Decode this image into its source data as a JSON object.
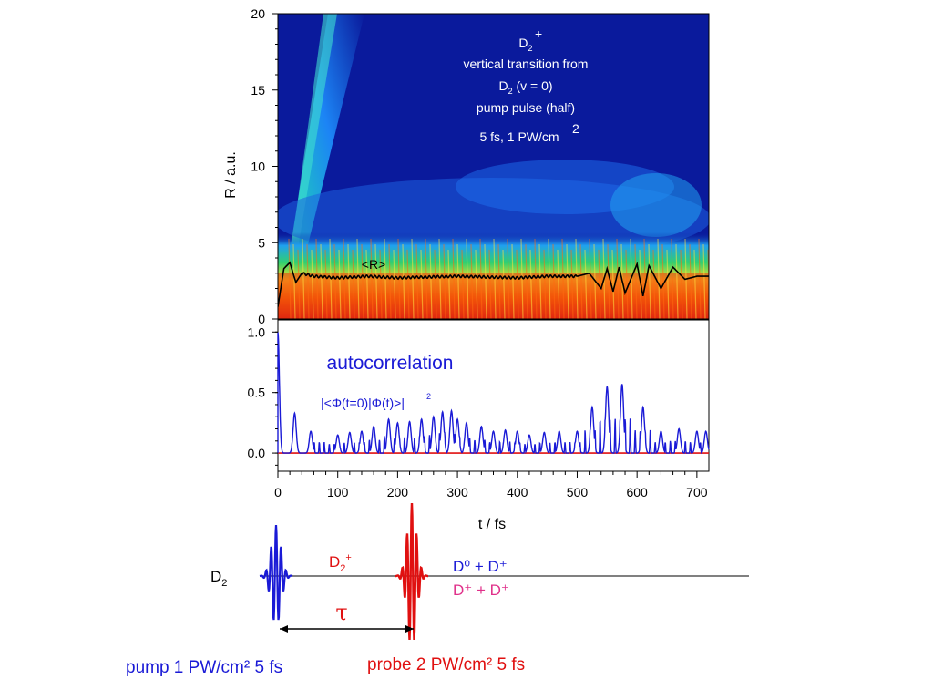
{
  "top_panel": {
    "ylabel": "R / a.u.",
    "yticks": [
      "0",
      "5",
      "10",
      "15",
      "20"
    ],
    "mean_label": "<R>",
    "annotation": {
      "species_base": "D",
      "species_sub": "2",
      "species_sup": "+",
      "line2": "vertical transition from",
      "line3_base": "D",
      "line3_sub": "2",
      "line3_rest": " (v = 0)",
      "line4": "pump pulse (half)",
      "line5": "5 fs, 1 PW/cm",
      "line5_sup": "2"
    }
  },
  "bottom_panel": {
    "title": "autocorrelation",
    "formula": "|<Φ(t=0)|Φ(t)>|",
    "formula_sup": "2",
    "yticks": [
      "0.0",
      "0.5",
      "1.0"
    ],
    "xticks": [
      "0",
      "100",
      "200",
      "300",
      "400",
      "500",
      "600",
      "700"
    ],
    "xlabel": "t / fs"
  },
  "scheme": {
    "d2_base": "D",
    "d2_sub": "2",
    "d2plus_base": "D",
    "d2plus_sub": "2",
    "d2plus_sup": "+",
    "channel1": "D⁰ + D⁺",
    "channel2": "D⁺ + D⁺",
    "tau": "τ",
    "pump_label": "pump 1 PW/cm² 5 fs",
    "probe_label": "probe 2 PW/cm² 5 fs"
  },
  "colors": {
    "pump": "#1a1ad6",
    "probe": "#e01010",
    "channel2": "#e0308a",
    "heatmap_bg": "#0a1a9c"
  },
  "chart_data": [
    {
      "type": "heatmap",
      "title": "",
      "xlabel": "",
      "ylabel": "R / a.u.",
      "xlim": [
        0,
        720
      ],
      "ylim": [
        0,
        20
      ],
      "series": [
        {
          "name": "<R>",
          "x": [
            0,
            10,
            20,
            30,
            40,
            60,
            100,
            150,
            200,
            300,
            400,
            450,
            500,
            520,
            540,
            550,
            560,
            570,
            580,
            600,
            610,
            620,
            640,
            660,
            680,
            700,
            720
          ],
          "y": [
            0.8,
            3.3,
            3.7,
            2.4,
            3.0,
            2.8,
            2.7,
            2.8,
            2.7,
            2.8,
            2.7,
            2.8,
            2.8,
            3.0,
            2.0,
            3.3,
            1.8,
            3.4,
            1.7,
            3.6,
            1.5,
            3.5,
            2.0,
            3.4,
            2.6,
            2.8,
            2.8
          ]
        }
      ]
    },
    {
      "type": "line",
      "title": "autocorrelation",
      "xlabel": "t / fs",
      "ylabel": "",
      "xlim": [
        0,
        720
      ],
      "ylim": [
        -0.15,
        1.1
      ],
      "series": [
        {
          "name": "|<Φ(t=0)|Φ(t)>|²",
          "peaks": [
            [
              0,
              1.0
            ],
            [
              28,
              0.33
            ],
            [
              55,
              0.18
            ],
            [
              100,
              0.15
            ],
            [
              120,
              0.17
            ],
            [
              140,
              0.18
            ],
            [
              160,
              0.22
            ],
            [
              185,
              0.28
            ],
            [
              200,
              0.25
            ],
            [
              220,
              0.26
            ],
            [
              240,
              0.28
            ],
            [
              260,
              0.3
            ],
            [
              275,
              0.34
            ],
            [
              290,
              0.35
            ],
            [
              300,
              0.28
            ],
            [
              315,
              0.25
            ],
            [
              340,
              0.22
            ],
            [
              360,
              0.18
            ],
            [
              380,
              0.19
            ],
            [
              400,
              0.18
            ],
            [
              420,
              0.15
            ],
            [
              445,
              0.17
            ],
            [
              470,
              0.18
            ],
            [
              500,
              0.18
            ],
            [
              525,
              0.38
            ],
            [
              550,
              0.55
            ],
            [
              575,
              0.57
            ],
            [
              610,
              0.38
            ],
            [
              640,
              0.18
            ],
            [
              670,
              0.2
            ],
            [
              700,
              0.18
            ],
            [
              715,
              0.18
            ]
          ]
        },
        {
          "name": "baseline",
          "x": [
            0,
            720
          ],
          "y": [
            0,
            0
          ]
        }
      ]
    }
  ]
}
